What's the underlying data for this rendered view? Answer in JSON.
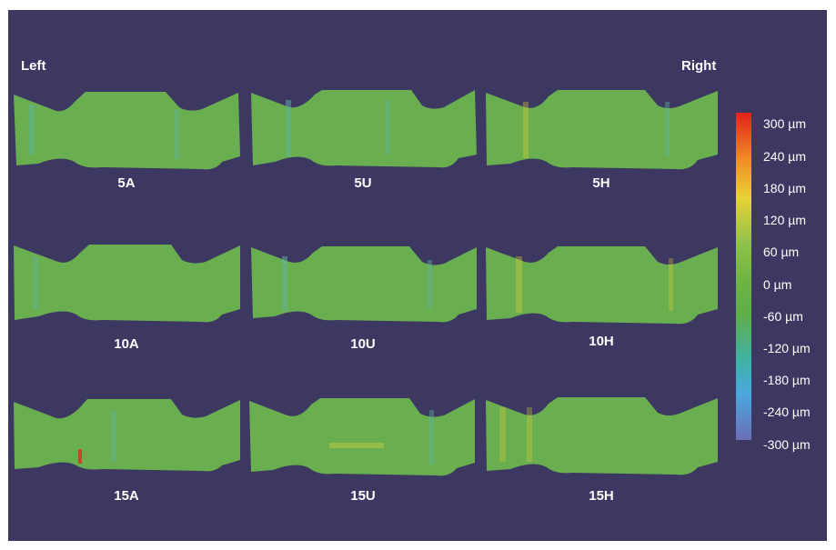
{
  "labels": {
    "left": "Left",
    "right": "Right"
  },
  "specimens": [
    "5A",
    "5U",
    "5H",
    "10A",
    "10U",
    "10H",
    "15A",
    "15U",
    "15H"
  ],
  "scale": {
    "ticks": [
      "300 µm",
      "240 µm",
      "180 µm",
      "120 µm",
      "60 µm",
      "0 µm",
      "-60 µm",
      "-120 µm",
      "-180 µm",
      "-240 µm",
      "-300 µm"
    ],
    "gradient_colors": [
      "#e4201b",
      "#f08a24",
      "#e9d235",
      "#8fc247",
      "#6bb445",
      "#5fae4c",
      "#3fb2a6",
      "#4ba7df",
      "#6b6fb6"
    ]
  },
  "colors": {
    "background": "#3c3862",
    "specimen_fill": "#69ae4f"
  }
}
